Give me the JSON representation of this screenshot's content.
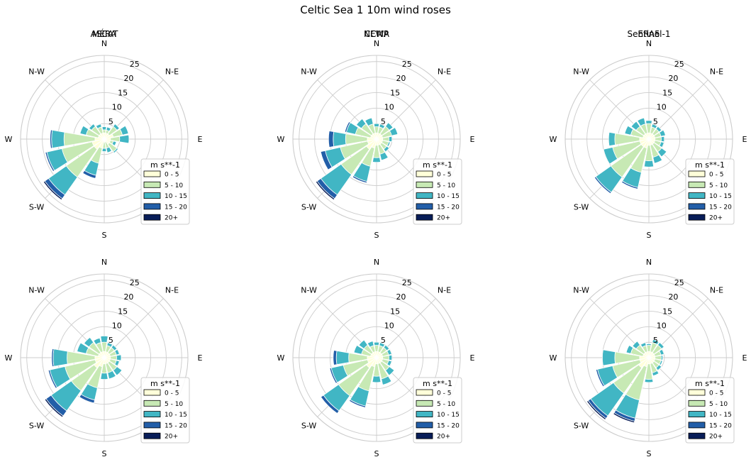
{
  "title": "Celtic Sea 1 10m wind roses",
  "colors": {
    "bins": [
      "#ffffd9",
      "#c7e9b4",
      "#41b6c4",
      "#225ea8",
      "#081d58"
    ],
    "grid": "#cccccc",
    "edge": "#ffffff"
  },
  "chart_data": [
    {
      "type": "windrose",
      "title": "ASCAT",
      "directions": [
        "N",
        "N-E",
        "E",
        "S-E",
        "S",
        "S-W",
        "W",
        "N-W"
      ],
      "direction_labels": [
        "N",
        "N-E",
        "E",
        "",
        "S",
        "S-W",
        "W",
        "N-W"
      ],
      "radial_ticks": [
        5,
        10,
        15,
        20,
        25
      ],
      "rmax": 27,
      "legend_title": "m s**-1",
      "bins": [
        "0 - 5",
        "5 - 10",
        "10 - 15",
        "15 - 20",
        "20+"
      ],
      "sectors_deg": [
        0,
        22.5,
        45,
        67.5,
        90,
        112.5,
        135,
        157.5,
        180,
        202.5,
        225,
        247.5,
        270,
        292.5,
        315,
        337.5
      ],
      "cumulative": [
        [
          2,
          3,
          4,
          4,
          4
        ],
        [
          2,
          3,
          4,
          4,
          4
        ],
        [
          2,
          5,
          6,
          6,
          6
        ],
        [
          3,
          6,
          8,
          8,
          8
        ],
        [
          2,
          5,
          8,
          8,
          8
        ],
        [
          2,
          3,
          4,
          4,
          4
        ],
        [
          2,
          5,
          5.5,
          5.5,
          5.5
        ],
        [
          1,
          3,
          4.5,
          4.5,
          4.5
        ],
        [
          1,
          3,
          4,
          4,
          4
        ],
        [
          3,
          8,
          12,
          13,
          13
        ],
        [
          4,
          15,
          22,
          23.5,
          24
        ],
        [
          4,
          14,
          19,
          19.5,
          19.5
        ],
        [
          3,
          13,
          17,
          17.5,
          17.5
        ],
        [
          2,
          6,
          8,
          8,
          8
        ],
        [
          2,
          5,
          6,
          6,
          6
        ],
        [
          2,
          4,
          5,
          5,
          5
        ]
      ]
    },
    {
      "type": "windrose",
      "title": "CCMP",
      "directions": [
        "N",
        "N-E",
        "E",
        "S-E",
        "S",
        "S-W",
        "W",
        "N-W"
      ],
      "direction_labels": [
        "N",
        "N-E",
        "E",
        "",
        "S",
        "S-W",
        "W",
        "N-W"
      ],
      "radial_ticks": [
        5,
        10,
        15,
        20,
        25
      ],
      "rmax": 27,
      "legend_title": "m s**-1",
      "bins": [
        "0 - 5",
        "5 - 10",
        "10 - 15",
        "15 - 20",
        "20+"
      ],
      "sectors_deg": [
        0,
        22.5,
        45,
        67.5,
        90,
        112.5,
        135,
        157.5,
        180,
        202.5,
        225,
        247.5,
        270,
        292.5,
        315,
        337.5
      ],
      "cumulative": [
        [
          2,
          4,
          5,
          5,
          5
        ],
        [
          2,
          4,
          5,
          5,
          5
        ],
        [
          2,
          5,
          6.5,
          6.5,
          6.5
        ],
        [
          2,
          5,
          7,
          7,
          7
        ],
        [
          2,
          4,
          5,
          5,
          5
        ],
        [
          2,
          4,
          4.5,
          4.5,
          4.5
        ],
        [
          2,
          4,
          5,
          5,
          5
        ],
        [
          2,
          5,
          7,
          7,
          7
        ],
        [
          2,
          6,
          7.5,
          7.5,
          7.5
        ],
        [
          3,
          9,
          14,
          14.5,
          14.5
        ],
        [
          4,
          14,
          22,
          23.5,
          24
        ],
        [
          3,
          12,
          17,
          18.5,
          18.5
        ],
        [
          3,
          10,
          14,
          15.5,
          15.5
        ],
        [
          2,
          7,
          10,
          10.5,
          10.5
        ],
        [
          2,
          6,
          8,
          8,
          8
        ],
        [
          2,
          5,
          7,
          7,
          7
        ]
      ]
    },
    {
      "type": "windrose",
      "title": "ERA5",
      "directions": [
        "N",
        "N-E",
        "E",
        "S-E",
        "S",
        "S-W",
        "W",
        "N-W"
      ],
      "direction_labels": [
        "N",
        "N-E",
        "E",
        "",
        "S",
        "S-W",
        "W",
        "N-W"
      ],
      "radial_ticks": [
        5,
        10,
        15,
        20,
        25
      ],
      "rmax": 27,
      "legend_title": "m s**-1",
      "bins": [
        "0 - 5",
        "5 - 10",
        "10 - 15",
        "15 - 20",
        "20+"
      ],
      "sectors_deg": [
        0,
        22.5,
        45,
        67.5,
        90,
        112.5,
        135,
        157.5,
        180,
        202.5,
        225,
        247.5,
        270,
        292.5,
        315,
        337.5
      ],
      "cumulative": [
        [
          2,
          5,
          6,
          6,
          6
        ],
        [
          2,
          4,
          5,
          5,
          5
        ],
        [
          2,
          4,
          5,
          5,
          5
        ],
        [
          2,
          4,
          5.5,
          5.5,
          5.5
        ],
        [
          2,
          4,
          5,
          5,
          5
        ],
        [
          2,
          4,
          5,
          5,
          5
        ],
        [
          2,
          5,
          7,
          7,
          7
        ],
        [
          2,
          6,
          8,
          8,
          8
        ],
        [
          2,
          7,
          9,
          9,
          9
        ],
        [
          3,
          11,
          16,
          16.5,
          16.5
        ],
        [
          3,
          15,
          21,
          21.5,
          21.5
        ],
        [
          3,
          12,
          15,
          15,
          15
        ],
        [
          3,
          11,
          13,
          13,
          13
        ],
        [
          2,
          6,
          8,
          8,
          8
        ],
        [
          2,
          5,
          7,
          7,
          7
        ],
        [
          2,
          5,
          7,
          7,
          7
        ]
      ]
    },
    {
      "type": "windrose",
      "title": "MÉRA",
      "directions": [
        "N",
        "N-E",
        "E",
        "S-E",
        "S",
        "S-W",
        "W",
        "N-W"
      ],
      "direction_labels": [
        "N",
        "N-E",
        "E",
        "",
        "S",
        "S-W",
        "W",
        "N-W"
      ],
      "radial_ticks": [
        5,
        10,
        15,
        20,
        25
      ],
      "rmax": 27,
      "legend_title": "m s**-1",
      "bins": [
        "0 - 5",
        "5 - 10",
        "10 - 15",
        "15 - 20",
        "20+"
      ],
      "sectors_deg": [
        0,
        22.5,
        45,
        67.5,
        90,
        112.5,
        135,
        157.5,
        180,
        202.5,
        225,
        247.5,
        270,
        292.5,
        315,
        337.5
      ],
      "cumulative": [
        [
          2,
          5,
          7,
          7,
          7
        ],
        [
          2,
          4,
          5,
          5,
          5
        ],
        [
          2,
          4,
          5,
          5,
          5
        ],
        [
          2,
          4,
          5,
          5,
          5
        ],
        [
          2,
          4,
          5.5,
          5.5,
          5.5
        ],
        [
          2,
          4,
          5,
          5,
          5
        ],
        [
          2,
          5,
          7,
          7,
          7
        ],
        [
          2,
          5,
          7,
          7,
          7
        ],
        [
          2,
          5,
          7,
          7,
          7
        ],
        [
          3,
          10,
          14,
          15,
          15
        ],
        [
          4,
          13,
          21,
          23,
          23.5
        ],
        [
          3,
          13,
          18,
          18.5,
          18.5
        ],
        [
          3,
          12,
          16.5,
          17,
          17
        ],
        [
          2,
          6,
          9,
          9,
          9
        ],
        [
          2,
          6,
          8,
          8,
          8
        ],
        [
          2,
          5,
          6.5,
          6.5,
          6.5
        ]
      ]
    },
    {
      "type": "windrose",
      "title": "NEWA",
      "directions": [
        "N",
        "N-E",
        "E",
        "S-E",
        "S",
        "S-W",
        "W",
        "N-W"
      ],
      "direction_labels": [
        "N",
        "N-E",
        "E",
        "",
        "S",
        "S-W",
        "W",
        "N-W"
      ],
      "radial_ticks": [
        5,
        10,
        15,
        20,
        25
      ],
      "rmax": 27,
      "legend_title": "m s**-1",
      "bins": [
        "0 - 5",
        "5 - 10",
        "10 - 15",
        "15 - 20",
        "20+"
      ],
      "sectors_deg": [
        0,
        22.5,
        45,
        67.5,
        90,
        112.5,
        135,
        157.5,
        180,
        202.5,
        225,
        247.5,
        270,
        292.5,
        315,
        337.5
      ],
      "cumulative": [
        [
          2,
          4,
          5,
          5,
          5
        ],
        [
          2,
          4,
          5,
          5,
          5
        ],
        [
          2,
          4,
          5,
          5,
          5
        ],
        [
          2,
          4,
          5,
          5,
          5
        ],
        [
          2,
          4,
          5,
          5,
          5
        ],
        [
          2,
          4,
          5,
          5,
          5
        ],
        [
          2,
          5,
          7,
          7,
          7
        ],
        [
          2,
          7,
          9,
          9,
          9
        ],
        [
          2,
          6,
          8,
          8,
          8
        ],
        [
          3,
          11,
          16,
          16.5,
          16.5
        ],
        [
          4,
          15,
          21,
          22,
          22
        ],
        [
          3,
          11,
          15,
          15.5,
          15.5
        ],
        [
          3,
          9,
          13,
          14,
          14
        ],
        [
          2,
          5,
          7.5,
          7.5,
          7.5
        ],
        [
          2,
          5,
          7,
          7,
          7
        ],
        [
          2,
          4,
          5.5,
          5.5,
          5.5
        ]
      ]
    },
    {
      "type": "windrose",
      "title": "Sentinel-1",
      "directions": [
        "N",
        "N-E",
        "E",
        "S-E",
        "S",
        "S-W",
        "W",
        "N-W"
      ],
      "direction_labels": [
        "N",
        "N-E",
        "E",
        "",
        "S",
        "S-W",
        "W",
        "N-W"
      ],
      "radial_ticks": [
        5,
        10,
        15,
        20,
        25
      ],
      "rmax": 27,
      "legend_title": "m s**-1",
      "bins": [
        "0 - 5",
        "5 - 10",
        "10 - 15",
        "15 - 20",
        "20+"
      ],
      "sectors_deg": [
        0,
        22.5,
        45,
        67.5,
        90,
        112.5,
        135,
        157.5,
        180,
        202.5,
        225,
        247.5,
        270,
        292.5,
        315,
        337.5
      ],
      "cumulative": [
        [
          2,
          4,
          4.5,
          4.5,
          4.5
        ],
        [
          2,
          5,
          6,
          6,
          6
        ],
        [
          2,
          5,
          6,
          6,
          6
        ],
        [
          2,
          4,
          5,
          5,
          5
        ],
        [
          2,
          4,
          4.5,
          4.5,
          4.5
        ],
        [
          2,
          4,
          4.5,
          4.5,
          4.5
        ],
        [
          2,
          4,
          5,
          5,
          5
        ],
        [
          2,
          5,
          6,
          6,
          6
        ],
        [
          2,
          7,
          8,
          8,
          8
        ],
        [
          3,
          14,
          20,
          21,
          21.5
        ],
        [
          4,
          14,
          23,
          24,
          24.5
        ],
        [
          3,
          12,
          17,
          17.5,
          17.5
        ],
        [
          3,
          11,
          15,
          15,
          15
        ],
        [
          2,
          6,
          7.5,
          7.5,
          7.5
        ],
        [
          2,
          5,
          6.5,
          6.5,
          6.5
        ],
        [
          2,
          4,
          5,
          5,
          5
        ]
      ]
    }
  ]
}
